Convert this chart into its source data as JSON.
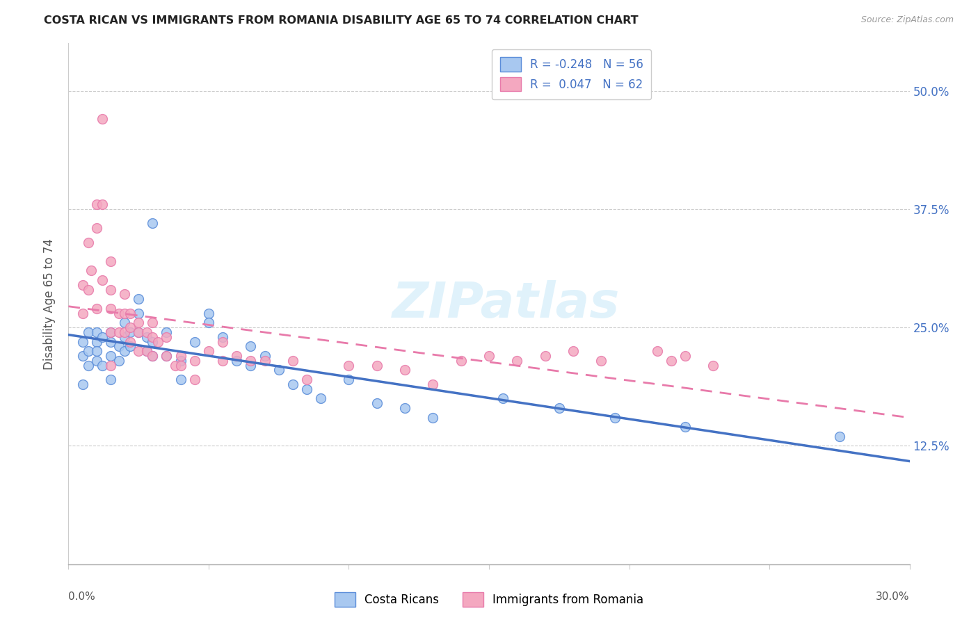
{
  "title": "COSTA RICAN VS IMMIGRANTS FROM ROMANIA DISABILITY AGE 65 TO 74 CORRELATION CHART",
  "source": "Source: ZipAtlas.com",
  "ylabel": "Disability Age 65 to 74",
  "ytick_vals": [
    0.125,
    0.25,
    0.375,
    0.5
  ],
  "ytick_labels": [
    "12.5%",
    "25.0%",
    "37.5%",
    "50.0%"
  ],
  "xmin": 0.0,
  "xmax": 0.3,
  "ymin": 0.0,
  "ymax": 0.55,
  "blue_color": "#a8c8f0",
  "pink_color": "#f4a8c0",
  "blue_edge_color": "#5b8dd9",
  "pink_edge_color": "#e87aaa",
  "blue_line_color": "#4472c4",
  "pink_line_color": "#e87aaa",
  "watermark": "ZIPatlas",
  "legend_line1": "R = -0.248   N = 56",
  "legend_line2": "R =  0.047   N = 62",
  "blue_scatter_x": [
    0.005,
    0.005,
    0.005,
    0.007,
    0.007,
    0.007,
    0.01,
    0.01,
    0.01,
    0.01,
    0.012,
    0.012,
    0.015,
    0.015,
    0.015,
    0.015,
    0.018,
    0.018,
    0.02,
    0.02,
    0.02,
    0.022,
    0.022,
    0.025,
    0.025,
    0.025,
    0.028,
    0.028,
    0.03,
    0.03,
    0.03,
    0.035,
    0.035,
    0.04,
    0.04,
    0.045,
    0.05,
    0.05,
    0.055,
    0.06,
    0.065,
    0.065,
    0.07,
    0.075,
    0.08,
    0.085,
    0.09,
    0.1,
    0.11,
    0.12,
    0.13,
    0.155,
    0.175,
    0.195,
    0.22,
    0.275
  ],
  "blue_scatter_y": [
    0.235,
    0.22,
    0.19,
    0.245,
    0.225,
    0.21,
    0.245,
    0.235,
    0.225,
    0.215,
    0.24,
    0.21,
    0.245,
    0.235,
    0.22,
    0.195,
    0.23,
    0.215,
    0.255,
    0.24,
    0.225,
    0.245,
    0.23,
    0.28,
    0.265,
    0.245,
    0.24,
    0.225,
    0.36,
    0.235,
    0.22,
    0.245,
    0.22,
    0.215,
    0.195,
    0.235,
    0.265,
    0.255,
    0.24,
    0.215,
    0.23,
    0.21,
    0.22,
    0.205,
    0.19,
    0.185,
    0.175,
    0.195,
    0.17,
    0.165,
    0.155,
    0.175,
    0.165,
    0.155,
    0.145,
    0.135
  ],
  "pink_scatter_x": [
    0.005,
    0.005,
    0.007,
    0.007,
    0.008,
    0.01,
    0.01,
    0.01,
    0.012,
    0.012,
    0.012,
    0.015,
    0.015,
    0.015,
    0.015,
    0.015,
    0.018,
    0.018,
    0.02,
    0.02,
    0.02,
    0.022,
    0.022,
    0.022,
    0.025,
    0.025,
    0.025,
    0.028,
    0.028,
    0.03,
    0.03,
    0.03,
    0.032,
    0.035,
    0.035,
    0.038,
    0.04,
    0.04,
    0.045,
    0.045,
    0.05,
    0.055,
    0.055,
    0.06,
    0.065,
    0.07,
    0.08,
    0.085,
    0.1,
    0.11,
    0.12,
    0.13,
    0.14,
    0.15,
    0.16,
    0.17,
    0.18,
    0.19,
    0.21,
    0.215,
    0.22,
    0.23
  ],
  "pink_scatter_y": [
    0.295,
    0.265,
    0.34,
    0.29,
    0.31,
    0.38,
    0.355,
    0.27,
    0.47,
    0.38,
    0.3,
    0.32,
    0.29,
    0.27,
    0.245,
    0.21,
    0.265,
    0.245,
    0.285,
    0.265,
    0.245,
    0.265,
    0.25,
    0.235,
    0.255,
    0.245,
    0.225,
    0.245,
    0.225,
    0.255,
    0.24,
    0.22,
    0.235,
    0.24,
    0.22,
    0.21,
    0.22,
    0.21,
    0.215,
    0.195,
    0.225,
    0.235,
    0.215,
    0.22,
    0.215,
    0.215,
    0.215,
    0.195,
    0.21,
    0.21,
    0.205,
    0.19,
    0.215,
    0.22,
    0.215,
    0.22,
    0.225,
    0.215,
    0.225,
    0.215,
    0.22,
    0.21
  ]
}
